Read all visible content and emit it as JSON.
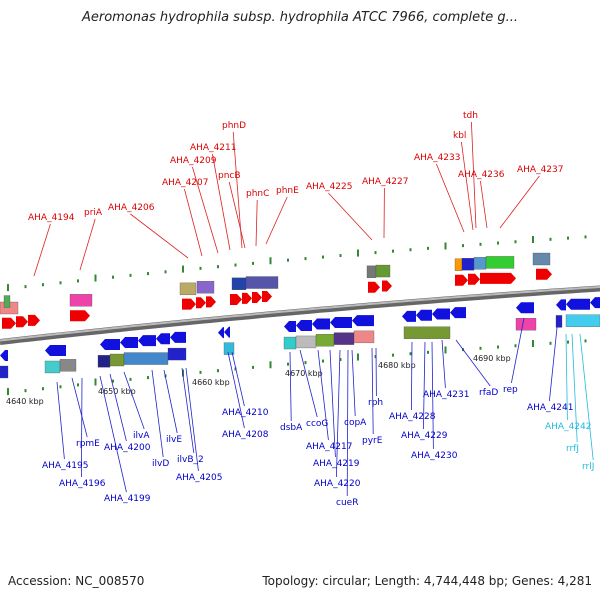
{
  "title": "Aeromonas hydrophila subsp. hydrophila ATCC 7966, complete g...",
  "footer": {
    "accession": "Accession: NC_008570",
    "stats": "Topology: circular; Length: 4,744,448 bp; Genes: 4,281"
  },
  "colors": {
    "forward_label": "#dd0000",
    "reverse_label": "#0000cc",
    "rna_label": "#22bbdd",
    "backbone": "#808080",
    "tick": "#338833"
  },
  "scale_labels": [
    {
      "text": "4640 kbp",
      "kbp": 4640
    },
    {
      "text": "4650 kbp",
      "kbp": 4650
    },
    {
      "text": "4660 kbp",
      "kbp": 4660
    },
    {
      "text": "4670 kbp",
      "kbp": 4670
    },
    {
      "text": "4680 kbp",
      "kbp": 4680
    },
    {
      "text": "4690 kbp",
      "kbp": 4690
    }
  ],
  "forward_genes": [
    {
      "name": "AHA_4194"
    },
    {
      "name": "priA"
    },
    {
      "name": "AHA_4206"
    },
    {
      "name": "AHA_4207"
    },
    {
      "name": "AHA_4209"
    },
    {
      "name": "AHA_4211"
    },
    {
      "name": "phnD"
    },
    {
      "name": "pncB"
    },
    {
      "name": "phnC"
    },
    {
      "name": "phnE"
    },
    {
      "name": "AHA_4225"
    },
    {
      "name": "AHA_4227"
    },
    {
      "name": "AHA_4233"
    },
    {
      "name": "kbl"
    },
    {
      "name": "tdh"
    },
    {
      "name": "AHA_4236"
    },
    {
      "name": "AHA_4237"
    }
  ],
  "reverse_genes": [
    {
      "name": "AHA_4195"
    },
    {
      "name": "rpmE"
    },
    {
      "name": "AHA_4196"
    },
    {
      "name": "AHA_4199"
    },
    {
      "name": "AHA_4200"
    },
    {
      "name": "ilvA"
    },
    {
      "name": "ilvD"
    },
    {
      "name": "ilvE"
    },
    {
      "name": "ilvB_2"
    },
    {
      "name": "AHA_4205"
    },
    {
      "name": "AHA_4208"
    },
    {
      "name": "AHA_4210"
    },
    {
      "name": "dsbA"
    },
    {
      "name": "ccoG"
    },
    {
      "name": "AHA_4217"
    },
    {
      "name": "AHA_4219"
    },
    {
      "name": "AHA_4220"
    },
    {
      "name": "cueR"
    },
    {
      "name": "copA"
    },
    {
      "name": "pyrE"
    },
    {
      "name": "rph"
    },
    {
      "name": "AHA_4228"
    },
    {
      "name": "AHA_4229"
    },
    {
      "name": "AHA_4230"
    },
    {
      "name": "AHA_4231"
    },
    {
      "name": "rfaD"
    },
    {
      "name": "rep"
    },
    {
      "name": "AHA_4241"
    }
  ],
  "rna_genes": [
    {
      "name": "AHA_4242"
    },
    {
      "name": "rrfJ"
    },
    {
      "name": "rrlJ"
    }
  ]
}
